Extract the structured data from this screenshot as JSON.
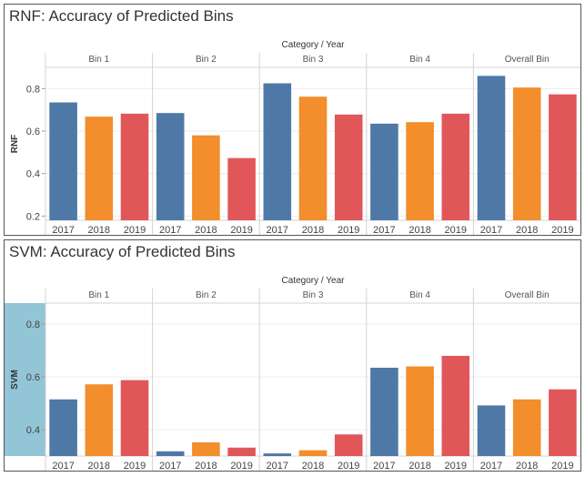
{
  "chart_data": [
    {
      "type": "bar",
      "title": "RNF: Accuracy of Predicted Bins",
      "column_header": "Category / Year",
      "ylabel": "RNF",
      "ylim": [
        0.18,
        0.9
      ],
      "yticks": [
        0.2,
        0.4,
        0.6,
        0.8
      ],
      "ytick_labels": [
        "0.2",
        "0.4",
        "0.6",
        "0.8"
      ],
      "years": [
        "2017",
        "2018",
        "2019"
      ],
      "colors": [
        "#4e79a7",
        "#f28e2b",
        "#e15759"
      ],
      "highlight_ylabel": false,
      "groups": [
        {
          "name": "Bin 1",
          "values": [
            0.735,
            0.668,
            0.682
          ]
        },
        {
          "name": "Bin 2",
          "values": [
            0.685,
            0.58,
            0.473
          ]
        },
        {
          "name": "Bin 3",
          "values": [
            0.825,
            0.762,
            0.678
          ]
        },
        {
          "name": "Bin 4",
          "values": [
            0.635,
            0.642,
            0.682
          ]
        },
        {
          "name": "Overall Bin",
          "values": [
            0.86,
            0.805,
            0.773
          ]
        }
      ]
    },
    {
      "type": "bar",
      "title": "SVM: Accuracy of Predicted Bins",
      "column_header": "Category / Year",
      "ylabel": "SVM",
      "ylim": [
        0.3,
        0.88
      ],
      "yticks": [
        0.4,
        0.6,
        0.8
      ],
      "ytick_labels": [
        "0.4",
        "0.6",
        "0.8"
      ],
      "years": [
        "2017",
        "2018",
        "2019"
      ],
      "colors": [
        "#4e79a7",
        "#f28e2b",
        "#e15759"
      ],
      "highlight_ylabel": true,
      "highlight_color": "#92c5d6",
      "groups": [
        {
          "name": "Bin 1",
          "values": [
            0.515,
            0.572,
            0.588
          ]
        },
        {
          "name": "Bin 2",
          "values": [
            0.318,
            0.352,
            0.332
          ]
        },
        {
          "name": "Bin 3",
          "values": [
            0.31,
            0.322,
            0.382
          ]
        },
        {
          "name": "Bin 4",
          "values": [
            0.635,
            0.64,
            0.68
          ]
        },
        {
          "name": "Overall Bin",
          "values": [
            0.492,
            0.515,
            0.553
          ]
        }
      ]
    }
  ]
}
